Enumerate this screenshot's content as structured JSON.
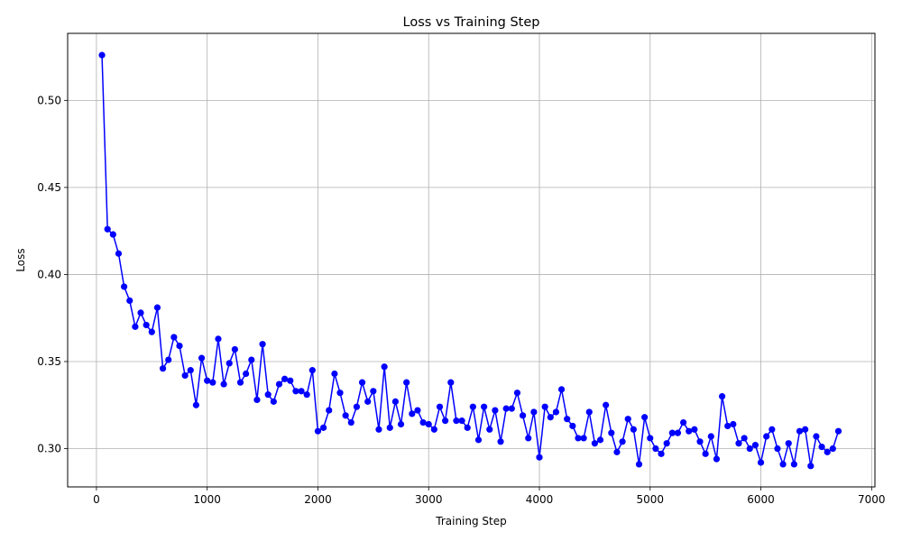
{
  "chart_data": {
    "type": "line",
    "title": "Loss vs Training Step",
    "xlabel": "Training Step",
    "ylabel": "Loss",
    "xlim": [
      -260,
      7030
    ],
    "ylim": [
      0.278,
      0.5385
    ],
    "xticks": [
      0,
      1000,
      2000,
      3000,
      4000,
      5000,
      6000,
      7000
    ],
    "yticks": [
      0.3,
      0.35,
      0.4,
      0.45,
      0.5
    ],
    "ytick_labels": [
      "0.30",
      "0.35",
      "0.40",
      "0.45",
      "0.50"
    ],
    "grid": true,
    "colors": {
      "line": "#0000ff",
      "marker": "#0000ff",
      "grid": "#b0b0b0"
    },
    "series": [
      {
        "marker": "circle",
        "x": [
          50,
          100,
          150,
          200,
          250,
          300,
          350,
          400,
          450,
          500,
          550,
          600,
          650,
          700,
          750,
          800,
          850,
          900,
          950,
          1000,
          1050,
          1100,
          1150,
          1200,
          1250,
          1300,
          1350,
          1400,
          1450,
          1500,
          1550,
          1600,
          1650,
          1700,
          1750,
          1800,
          1850,
          1900,
          1950,
          2000,
          2050,
          2100,
          2150,
          2200,
          2250,
          2300,
          2350,
          2400,
          2450,
          2500,
          2550,
          2600,
          2650,
          2700,
          2750,
          2800,
          2850,
          2900,
          2950,
          3000,
          3050,
          3100,
          3150,
          3200,
          3250,
          3300,
          3350,
          3400,
          3450,
          3500,
          3550,
          3600,
          3650,
          3700,
          3750,
          3800,
          3850,
          3900,
          3950,
          4000,
          4050,
          4100,
          4150,
          4200,
          4250,
          4300,
          4350,
          4400,
          4450,
          4500,
          4550,
          4600,
          4650,
          4700,
          4750,
          4800,
          4850,
          4900,
          4950,
          5000,
          5050,
          5100,
          5150,
          5200,
          5250,
          5300,
          5350,
          5400,
          5450,
          5500,
          5550,
          5600,
          5650,
          5700,
          5750,
          5800,
          5850,
          5900,
          5950,
          6000,
          6050,
          6100,
          6150,
          6200,
          6250,
          6300,
          6350,
          6400,
          6450,
          6500,
          6550,
          6600,
          6650,
          6700
        ],
        "y": [
          0.526,
          0.426,
          0.423,
          0.412,
          0.393,
          0.385,
          0.37,
          0.378,
          0.371,
          0.367,
          0.381,
          0.346,
          0.351,
          0.364,
          0.359,
          0.342,
          0.345,
          0.325,
          0.352,
          0.339,
          0.338,
          0.363,
          0.337,
          0.349,
          0.357,
          0.338,
          0.343,
          0.351,
          0.328,
          0.36,
          0.331,
          0.327,
          0.337,
          0.34,
          0.339,
          0.333,
          0.333,
          0.331,
          0.345,
          0.31,
          0.312,
          0.322,
          0.343,
          0.332,
          0.319,
          0.315,
          0.324,
          0.338,
          0.327,
          0.333,
          0.311,
          0.347,
          0.312,
          0.327,
          0.314,
          0.338,
          0.32,
          0.322,
          0.315,
          0.314,
          0.311,
          0.324,
          0.316,
          0.338,
          0.316,
          0.316,
          0.312,
          0.324,
          0.305,
          0.324,
          0.311,
          0.322,
          0.304,
          0.323,
          0.323,
          0.332,
          0.319,
          0.306,
          0.321,
          0.295,
          0.324,
          0.318,
          0.321,
          0.334,
          0.317,
          0.313,
          0.306,
          0.306,
          0.321,
          0.303,
          0.305,
          0.325,
          0.309,
          0.298,
          0.304,
          0.317,
          0.311,
          0.291,
          0.318,
          0.306,
          0.3,
          0.297,
          0.303,
          0.309,
          0.309,
          0.315,
          0.31,
          0.311,
          0.304,
          0.297,
          0.307,
          0.294,
          0.33,
          0.313,
          0.314,
          0.303,
          0.306,
          0.3,
          0.302,
          0.292,
          0.307,
          0.311,
          0.3,
          0.291,
          0.303,
          0.291,
          0.31,
          0.311,
          0.29,
          0.307,
          0.301,
          0.298,
          0.3,
          0.31
        ]
      }
    ]
  }
}
